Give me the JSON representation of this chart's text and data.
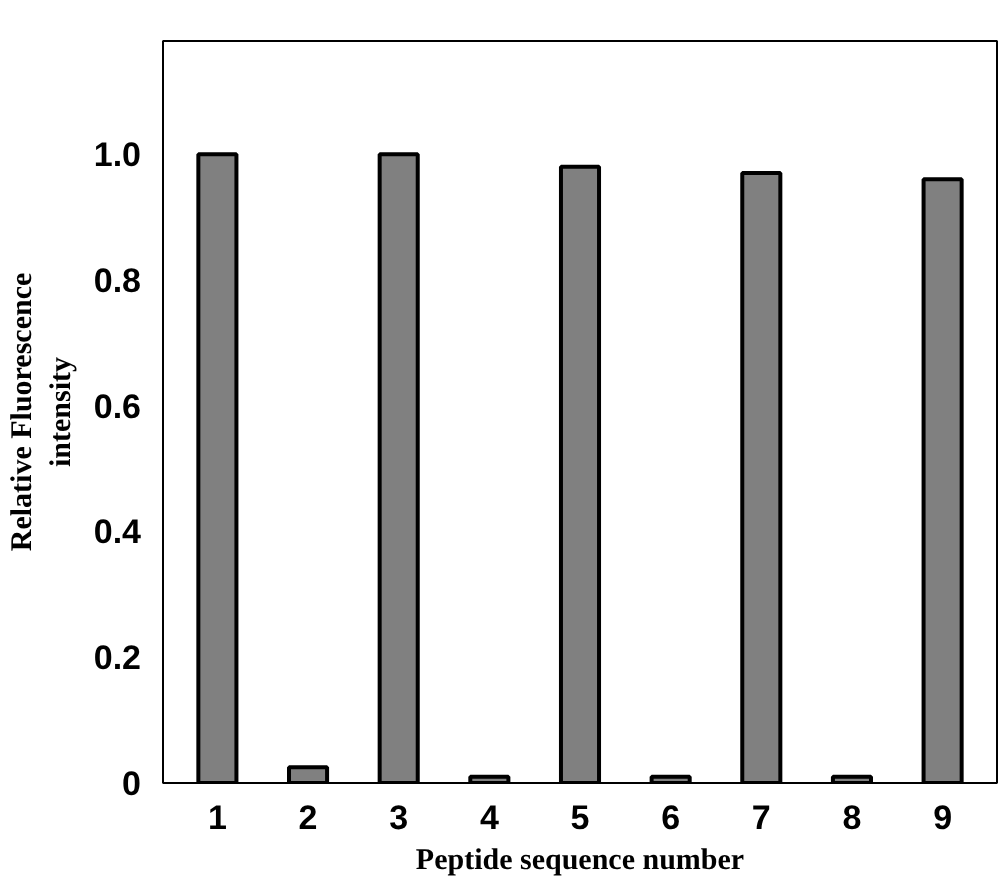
{
  "chart_data": {
    "type": "bar",
    "xlabel": "Peptide sequence number",
    "ylabel": "Relative Fluorescence\nintensity",
    "categories": [
      "1",
      "2",
      "3",
      "4",
      "5",
      "6",
      "7",
      "8",
      "9"
    ],
    "values": [
      1.0,
      0.025,
      1.0,
      0.01,
      0.98,
      0.01,
      0.97,
      0.01,
      0.96
    ],
    "color": "#808080",
    "ylim": [
      0,
      1.18
    ],
    "yticks": [
      {
        "value": 0,
        "label": "0"
      },
      0.2,
      0.4,
      0.6,
      0.8,
      {
        "value": 1.0,
        "label": "1.0"
      }
    ],
    "grid": false
  }
}
